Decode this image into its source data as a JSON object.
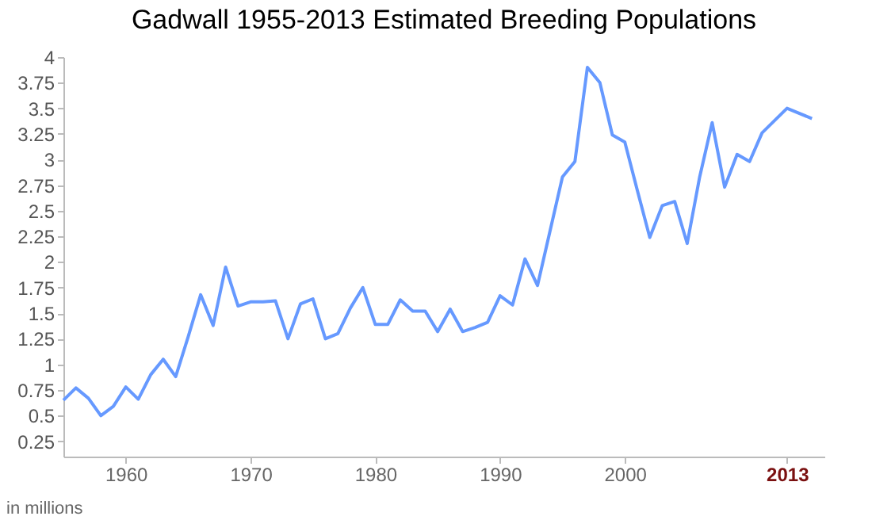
{
  "chart_data": {
    "type": "line",
    "title": "Gadwall 1955-2013 Estimated Breeding Populations",
    "annotations": [
      "in millions"
    ],
    "x": [
      1955,
      1956,
      1957,
      1958,
      1959,
      1960,
      1961,
      1962,
      1963,
      1964,
      1965,
      1966,
      1967,
      1968,
      1969,
      1970,
      1971,
      1972,
      1973,
      1974,
      1975,
      1976,
      1977,
      1978,
      1979,
      1980,
      1981,
      1982,
      1983,
      1984,
      1985,
      1986,
      1987,
      1988,
      1989,
      1990,
      1991,
      1992,
      1993,
      1994,
      1995,
      1996,
      1997,
      1998,
      1999,
      2000,
      2001,
      2002,
      2003,
      2004,
      2005,
      2006,
      2007,
      2008,
      2009,
      2010,
      2011,
      2012,
      2013,
      2015
    ],
    "series": [
      {
        "color": "#6699ff",
        "values": [
          0.65,
          0.77,
          0.67,
          0.5,
          0.59,
          0.78,
          0.66,
          0.9,
          1.05,
          0.88,
          1.27,
          1.68,
          1.38,
          1.95,
          1.57,
          1.61,
          1.61,
          1.62,
          1.25,
          1.59,
          1.64,
          1.25,
          1.3,
          1.55,
          1.75,
          1.39,
          1.39,
          1.63,
          1.52,
          1.52,
          1.32,
          1.54,
          1.32,
          1.36,
          1.41,
          1.67,
          1.58,
          2.03,
          1.77,
          2.3,
          2.83,
          2.98,
          3.9,
          3.75,
          3.24,
          3.17,
          2.7,
          2.24,
          2.55,
          2.59,
          2.18,
          2.83,
          3.36,
          2.73,
          3.05,
          2.98,
          3.26,
          3.38,
          3.5,
          3.4
        ]
      }
    ],
    "xlim": [
      1955,
      2016
    ],
    "xticks": [
      1960,
      1970,
      1980,
      1990,
      2000,
      2013
    ],
    "ylim": [
      0.1,
      4
    ],
    "yticks": [
      0.25,
      0.5,
      0.75,
      1,
      1.25,
      1.5,
      1.75,
      2,
      2.25,
      2.5,
      2.75,
      3,
      3.25,
      3.5,
      3.75,
      4
    ],
    "grid": false,
    "legend": false,
    "marker": "none",
    "line_style": "solid"
  }
}
